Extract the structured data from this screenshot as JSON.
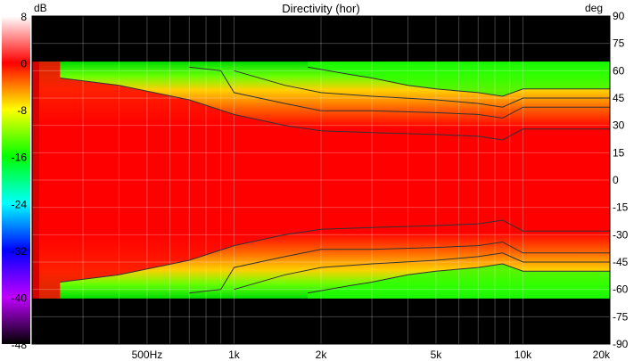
{
  "chart_data": {
    "type": "heatmap",
    "title": "Directivity (hor)",
    "colorbar": {
      "unit": "dB",
      "ticks": [
        8,
        0,
        -8,
        -16,
        -24,
        -32,
        -40,
        -48
      ],
      "range": [
        -48,
        8
      ],
      "stops": [
        {
          "db": 8,
          "color": "#ffffff"
        },
        {
          "db": 0,
          "color": "#ff0000"
        },
        {
          "db": -4,
          "color": "#ff8000"
        },
        {
          "db": -8,
          "color": "#ffff00"
        },
        {
          "db": -16,
          "color": "#00ff00"
        },
        {
          "db": -24,
          "color": "#00ffff"
        },
        {
          "db": -32,
          "color": "#0000ff"
        },
        {
          "db": -40,
          "color": "#c000ff"
        },
        {
          "db": -48,
          "color": "#000000"
        }
      ]
    },
    "x_axis": {
      "scale": "log",
      "range": [
        200,
        20000
      ],
      "tick_values": [
        500,
        1000,
        2000,
        5000,
        10000,
        20000
      ],
      "tick_labels": [
        "500Hz",
        "1k",
        "2k",
        "5k",
        "10k",
        "20k"
      ]
    },
    "y_axis": {
      "unit": "deg",
      "range": [
        -90,
        90
      ],
      "ticks": [
        90,
        75,
        60,
        45,
        30,
        15,
        0,
        -15,
        -30,
        -45,
        -60,
        -75,
        -90
      ]
    },
    "grid": true,
    "contour_levels_db": [
      -3,
      -6,
      -9,
      -12
    ],
    "iso_db_angle_deg": [
      {
        "level": -3,
        "freq": [
          250,
          400,
          700,
          1000,
          1500,
          2000,
          3000,
          5000,
          7000,
          8500,
          10000,
          20000
        ],
        "angle": [
          56,
          52,
          44,
          36,
          30,
          27,
          26,
          25,
          24,
          22,
          28,
          28
        ]
      },
      {
        "level": -6,
        "freq": [
          700,
          900,
          1000,
          1500,
          2000,
          3000,
          5000,
          7000,
          8500,
          10000,
          20000
        ],
        "angle": [
          62,
          60,
          48,
          42,
          38,
          38,
          37,
          36,
          34,
          40,
          40
        ]
      },
      {
        "level": -9,
        "freq": [
          1000,
          1500,
          2000,
          3000,
          5000,
          7000,
          8500,
          10000,
          20000
        ],
        "angle": [
          60,
          52,
          48,
          46,
          44,
          42,
          40,
          45,
          45
        ]
      },
      {
        "level": -12,
        "freq": [
          1800,
          2500,
          3000,
          4000,
          5000,
          7000,
          8500,
          10000,
          20000
        ],
        "angle": [
          62,
          58,
          56,
          52,
          50,
          48,
          46,
          50,
          50
        ]
      }
    ],
    "measured_angle_limit_deg": 65
  }
}
